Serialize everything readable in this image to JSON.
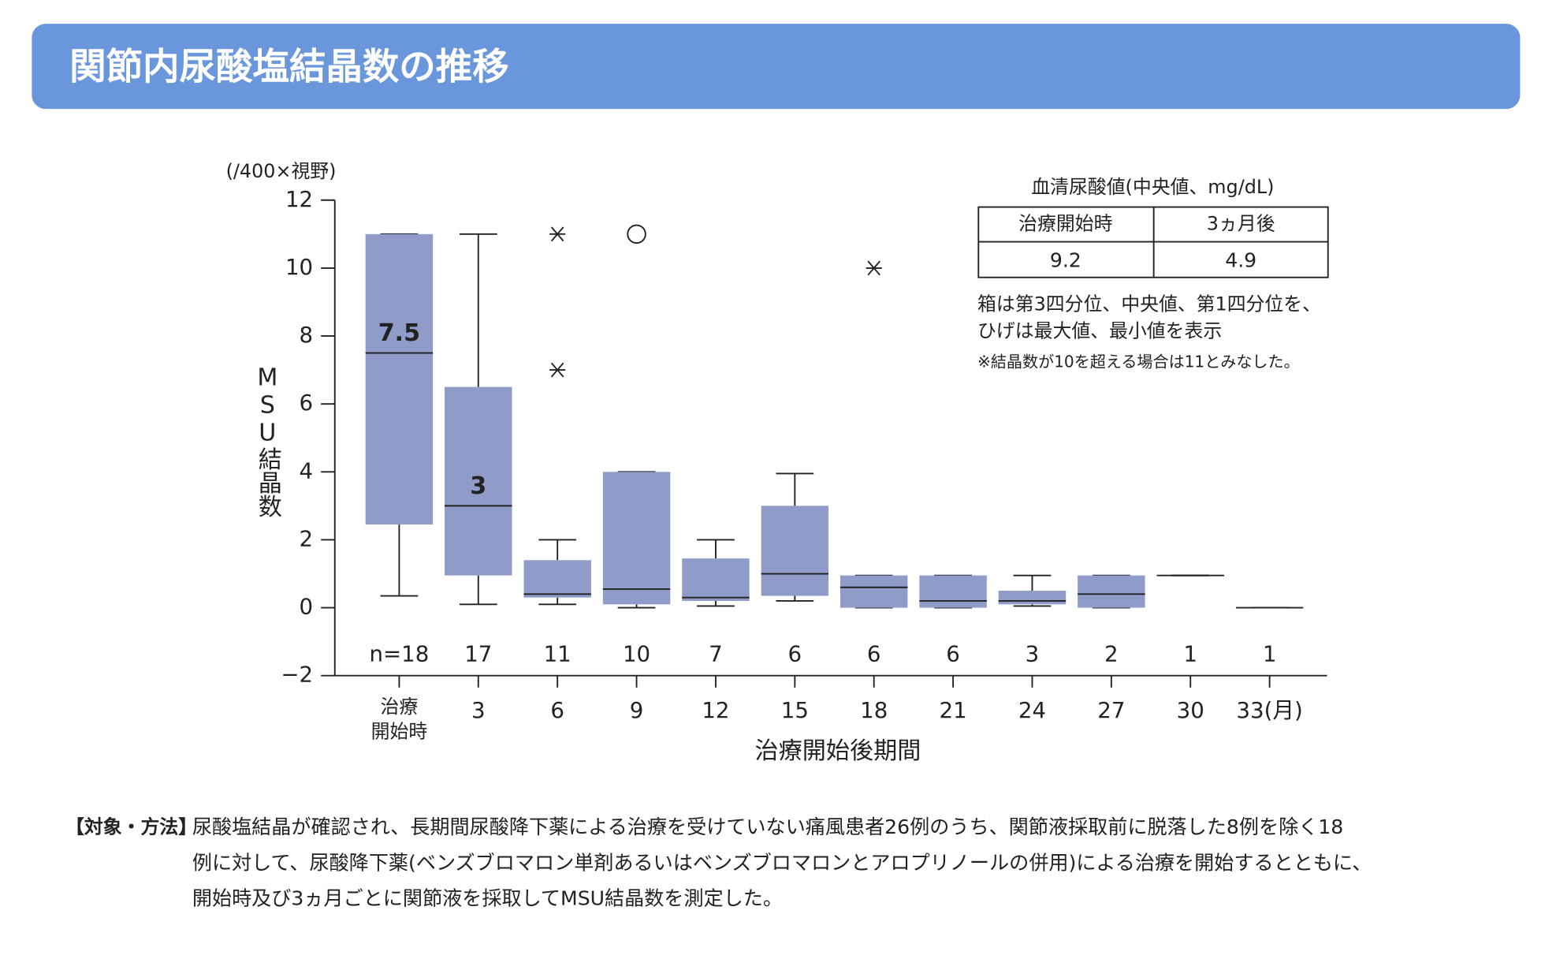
{
  "header": {
    "title": "関節内尿酸塩結晶数の推移"
  },
  "chart_data": {
    "type": "box",
    "y_unit": "(/400×視野)",
    "y_label": "MSU結晶数",
    "x_label": "治療開始後期間",
    "categories": [
      "治療\n開始時",
      "3",
      "6",
      "9",
      "12",
      "15",
      "18",
      "21",
      "24",
      "27",
      "30",
      "33(月)"
    ],
    "n_labels": [
      "n=18",
      "17",
      "11",
      "10",
      "7",
      "6",
      "6",
      "6",
      "3",
      "2",
      "1",
      "1"
    ],
    "color": "#8f9bc8",
    "boxes": [
      {
        "min": 0.35,
        "q1": 2.45,
        "median": 7.5,
        "q3": 11,
        "max": 11,
        "median_label": "7.5"
      },
      {
        "min": 0.1,
        "q1": 0.95,
        "median": 3,
        "q3": 6.5,
        "max": 11,
        "median_label": "3"
      },
      {
        "min": 0.1,
        "q1": 0.3,
        "median": 0.4,
        "q3": 1.4,
        "max": 2,
        "outliers": [
          {
            "value": 11,
            "marker": "asterisk"
          },
          {
            "value": 7,
            "marker": "asterisk"
          }
        ]
      },
      {
        "min": 0,
        "q1": 0.1,
        "median": 0.55,
        "q3": 4,
        "max": 4,
        "outliers": [
          {
            "value": 11,
            "marker": "circle"
          }
        ]
      },
      {
        "min": 0.05,
        "q1": 0.2,
        "median": 0.3,
        "q3": 1.45,
        "max": 2
      },
      {
        "min": 0.2,
        "q1": 0.35,
        "median": 1,
        "q3": 3,
        "max": 3.95
      },
      {
        "min": 0,
        "q1": 0,
        "median": 0.6,
        "q3": 0.95,
        "max": 0.95,
        "outliers": [
          {
            "value": 10,
            "marker": "asterisk"
          }
        ]
      },
      {
        "min": 0,
        "q1": 0,
        "median": 0.2,
        "q3": 0.95,
        "max": 0.95
      },
      {
        "min": 0.05,
        "q1": 0.1,
        "median": 0.2,
        "q3": 0.5,
        "max": 0.95
      },
      {
        "min": 0,
        "q1": 0,
        "median": 0.4,
        "q3": 0.95,
        "max": 0.95
      },
      {
        "min": 0.95,
        "q1": 0.95,
        "median": 0.95,
        "q3": 0.95,
        "max": 0.95
      },
      {
        "min": 0,
        "q1": 0,
        "median": 0,
        "q3": 0,
        "max": 0
      }
    ],
    "ylim": [
      -2,
      12
    ],
    "yticks": [
      12,
      10,
      8,
      6,
      4,
      2,
      0,
      {
        "value": -2,
        "label": "−2"
      }
    ]
  },
  "inset_table": {
    "title": "血清尿酸値(中央値、mg/dL)",
    "headers": [
      "治療開始時",
      "3ヵ月後"
    ],
    "values": [
      "9.2",
      "4.9"
    ]
  },
  "notes": [
    "箱は第3四分位、中央値、第1四分位を、",
    "ひげは最大値、最小値を表示",
    "※結晶数が10を超える場合は11とみなした。"
  ],
  "footer": {
    "label": "【対象・方法】",
    "lines": [
      "尿酸塩結晶が確認され、長期間尿酸降下薬による治療を受けていない痛風患者26例のうち、関節液採取前に脱落した8例を除く18",
      "例に対して、尿酸降下薬(ベンズブロマロン単剤あるいはベンズブロマロンとアロプリノールの併用)による治療を開始するとともに、",
      "開始時及び3ヵ月ごとに関節液を採取してMSU結晶数を測定した。"
    ]
  }
}
